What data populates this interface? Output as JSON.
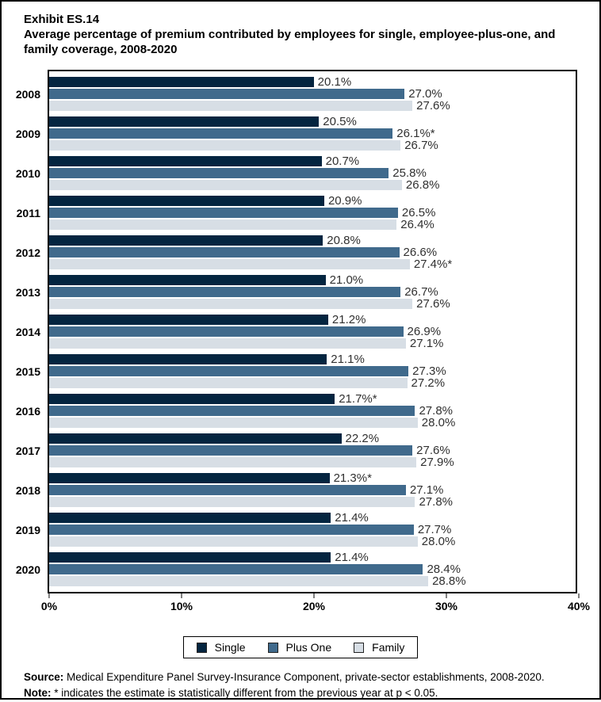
{
  "chart_data": {
    "type": "bar",
    "orientation": "horizontal",
    "title": "Exhibit ES.14",
    "subtitle": "Average percentage of premium contributed by employees for single, employee-plus-one, and family coverage, 2008-2020",
    "categories": [
      "2008",
      "2009",
      "2010",
      "2011",
      "2012",
      "2013",
      "2014",
      "2015",
      "2016",
      "2017",
      "2018",
      "2019",
      "2020"
    ],
    "series": [
      {
        "name": "Single",
        "color": "#042540",
        "values": [
          20.1,
          20.5,
          20.7,
          20.9,
          20.8,
          21.0,
          21.2,
          21.1,
          21.7,
          22.2,
          21.3,
          21.4,
          21.4
        ],
        "labels": [
          "20.1%",
          "20.5%",
          "20.7%",
          "20.9%",
          "20.8%",
          "21.0%",
          "21.2%",
          "21.1%",
          "21.7%*",
          "22.2%",
          "21.3%*",
          "21.4%",
          "21.4%"
        ]
      },
      {
        "name": "Plus One",
        "color": "#406A8C",
        "values": [
          27.0,
          26.1,
          25.8,
          26.5,
          26.6,
          26.7,
          26.9,
          27.3,
          27.8,
          27.6,
          27.1,
          27.7,
          28.4
        ],
        "labels": [
          "27.0%",
          "26.1%*",
          "25.8%",
          "26.5%",
          "26.6%",
          "26.7%",
          "26.9%",
          "27.3%",
          "27.8%",
          "27.6%",
          "27.1%",
          "27.7%",
          "28.4%"
        ]
      },
      {
        "name": "Family",
        "color": "#D7DEE5",
        "values": [
          27.6,
          26.7,
          26.8,
          26.4,
          27.4,
          27.6,
          27.1,
          27.2,
          28.0,
          27.9,
          27.8,
          28.0,
          28.8
        ],
        "labels": [
          "27.6%",
          "26.7%",
          "26.8%",
          "26.4%",
          "27.4%*",
          "27.6%",
          "27.1%",
          "27.2%",
          "28.0%",
          "27.9%",
          "27.8%",
          "28.0%",
          "28.8%"
        ]
      }
    ],
    "xlim": [
      0,
      40
    ],
    "x_ticks": [
      "0%",
      "10%",
      "20%",
      "30%",
      "40%"
    ],
    "legend": [
      "Single",
      "Plus One",
      "Family"
    ],
    "legend_position": "bottom",
    "grid": false
  },
  "footer": {
    "source_label": "Source:",
    "source_text": " Medical Expenditure Panel Survey-Insurance Component, private-sector establishments, 2008-2020.",
    "note_label": "Note:",
    "note_text": " * indicates the estimate is statistically different from the previous year at p < 0.05."
  }
}
